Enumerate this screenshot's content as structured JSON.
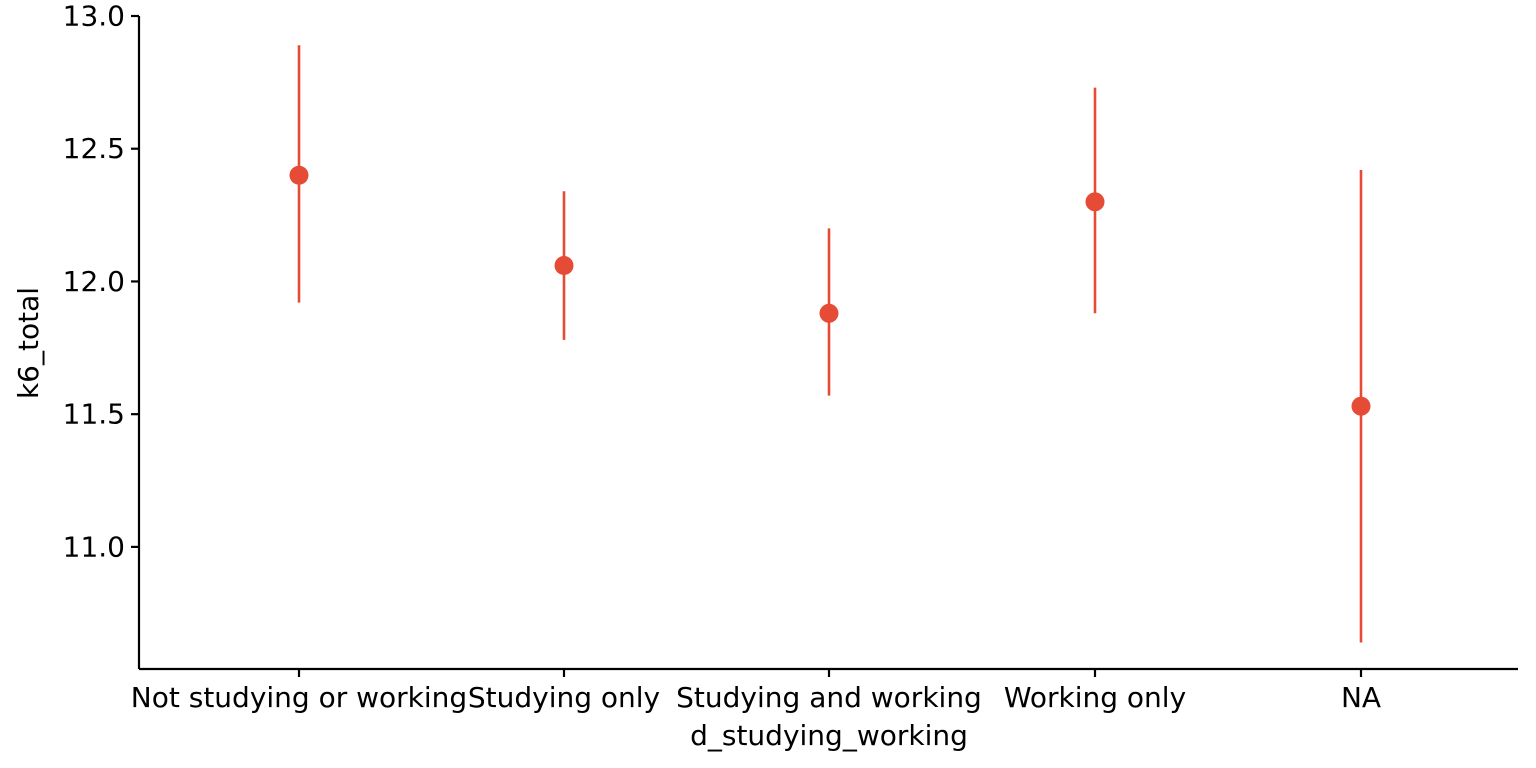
{
  "chart_data": {
    "type": "scatter",
    "title": "",
    "xlabel": "d_studying_working",
    "ylabel": "k6_total",
    "categories": [
      "Not studying or working",
      "Studying only",
      "Studying and working",
      "Working only",
      "NA"
    ],
    "series": [
      {
        "values": [
          12.4,
          12.06,
          11.88,
          12.3,
          11.53
        ],
        "lower": [
          11.92,
          11.78,
          11.57,
          11.88,
          10.64
        ],
        "upper": [
          12.89,
          12.34,
          12.2,
          12.73,
          12.42
        ]
      }
    ],
    "yticks": [
      11.0,
      11.5,
      12.0,
      12.5,
      13.0
    ],
    "ytick_labels": [
      "11.0",
      "11.5",
      "12.0",
      "12.5",
      "13.0"
    ],
    "ylim": [
      10.54,
      13.0
    ],
    "grid": false,
    "color": "#e64b35"
  }
}
